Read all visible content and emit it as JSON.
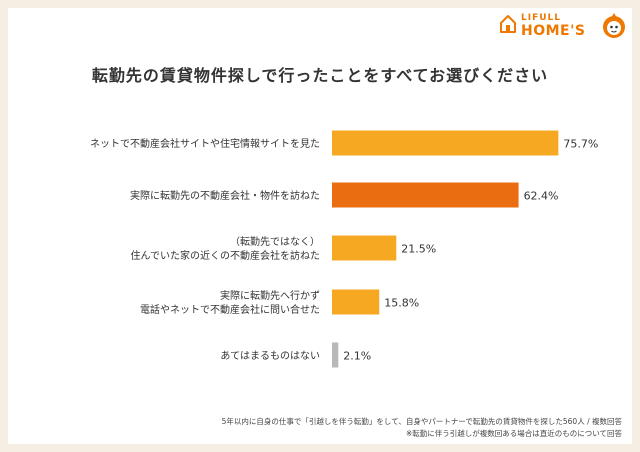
{
  "brand": {
    "name_top": "LIFULL",
    "name_main": "HOME'S",
    "accent": "#ee7800"
  },
  "title": "転勤先の賃貸物件探しで行ったことをすべてお選びください",
  "chart_data": {
    "type": "bar",
    "orientation": "horizontal",
    "title": "転勤先の賃貸物件探しで行ったことをすべてお選びください",
    "categories": [
      [
        "ネットで不動産会社サイトや住宅情報サイトを見た"
      ],
      [
        "実際に転勤先の不動産会社・物件を訪ねた"
      ],
      [
        "（転勤先ではなく）",
        "住んでいた家の近くの不動産会社を訪ねた"
      ],
      [
        "実際に転勤先へ行かず",
        "電話やネットで不動産会社に問い合せた"
      ],
      [
        "あてはまるものはない"
      ]
    ],
    "values": [
      75.7,
      62.4,
      21.5,
      15.8,
      2.1
    ],
    "value_labels": [
      "75.7%",
      "62.4%",
      "21.5%",
      "15.8%",
      "2.1%"
    ],
    "unit": "%",
    "colors": [
      "#f7a823",
      "#eb6d12",
      "#f7a823",
      "#f7a823",
      "#b8b8b8"
    ],
    "xlim": [
      0,
      100
    ],
    "grid": false,
    "legend": "none"
  },
  "footnotes": [
    "5年以内に自身の仕事で「引越しを伴う転勤」をして、自身やパートナーで転勤先の賃貸物件を探した560人 / 複数回答",
    "※転勤に伴う引越しが複数回ある場合は直近のものについて回答"
  ]
}
